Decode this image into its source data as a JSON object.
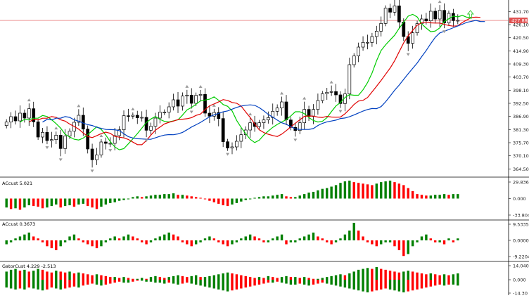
{
  "colors": {
    "background": "#ffffff",
    "bull_body": "#ffffff",
    "bear_body": "#000000",
    "candle_line": "#000000",
    "ma_fast": "#00cc00",
    "ma_mid": "#e00000",
    "ma_slow": "#0040c0",
    "price_line": "#e05050",
    "fractal": "#9a9a9a",
    "hist_up": "#008000",
    "hist_down": "#ff0000",
    "buy_arrow": "#33cc33"
  },
  "price_axis": {
    "ticks": [
      "431.70",
      "426.10",
      "420.50",
      "414.90",
      "409.30",
      "403.70",
      "398.10",
      "392.50",
      "386.90",
      "381.30",
      "375.70",
      "370.10",
      "364.50"
    ],
    "current_price": "427.88"
  },
  "panes": {
    "ac_1": {
      "label": "ACcust 5.021",
      "ticks": [
        "29.836",
        "0.000",
        "-33.804"
      ]
    },
    "ac_2": {
      "label": "ACcust 0.3673",
      "ticks": [
        "9.5335",
        "0.0000",
        "-9.2204"
      ]
    },
    "gator": {
      "label": "GatorCust 4.229 -2.513",
      "ticks": [
        "14.040",
        "0.000",
        "-14.30"
      ]
    }
  },
  "chart_data": {
    "type": "candlestick",
    "ylim": [
      361.0,
      436.0
    ],
    "close": [
      384.5,
      386.8,
      385.0,
      388.3,
      386.2,
      390.2,
      384.6,
      378.1,
      380.1,
      376.6,
      377.0,
      378.9,
      373.2,
      378.5,
      380.6,
      384.4,
      387.4,
      381.5,
      373.0,
      368.4,
      370.5,
      376.0,
      375.4,
      375.4,
      378.7,
      381.2,
      387.2,
      387.0,
      387.4,
      386.3,
      386.5,
      381.0,
      382.7,
      386.2,
      388.7,
      388.7,
      391.0,
      394.0,
      391.3,
      395.6,
      396.0,
      392.5,
      395.9,
      396.3,
      388.3,
      387.0,
      388.6,
      386.0,
      376.1,
      373.4,
      373.9,
      376.3,
      379.1,
      381.1,
      384.2,
      382.6,
      384.2,
      385.4,
      386.4,
      389.1,
      390.5,
      393.1,
      385.4,
      382.2,
      380.9,
      384.2,
      389.9,
      386.9,
      389.9,
      393.7,
      396.6,
      397.2,
      397.5,
      396.1,
      392.4,
      396.5,
      409.0,
      412.7,
      416.5,
      418.5,
      418.5,
      421.0,
      423.3,
      426.6,
      433.1,
      431.4,
      434.1,
      427.2,
      421.0,
      418.1,
      422.6,
      426.5,
      428.5,
      427.7,
      431.8,
      428.5,
      432.2,
      426.8,
      430.9,
      427.8,
      427.9
    ]
  },
  "indicators": {
    "ac_1": [
      -12,
      -14,
      -13,
      -15,
      -12,
      -9,
      -10,
      -11,
      -13,
      -12,
      -10,
      -8,
      -12,
      -10,
      -9,
      -11,
      -8,
      -7,
      -10,
      -12,
      -14,
      -11,
      -8,
      -6,
      -5,
      -3,
      -2,
      -1,
      2,
      3,
      2,
      3,
      4,
      5,
      5,
      6,
      6,
      7,
      5,
      5,
      4,
      3,
      2,
      1,
      -1,
      -3,
      -5,
      -7,
      -9,
      -10,
      -8,
      -6,
      -4,
      -2,
      -1,
      1,
      2,
      3,
      3,
      4,
      5,
      6,
      3,
      2,
      2,
      4,
      6,
      8,
      9,
      11,
      13,
      14,
      16,
      18,
      21,
      23,
      24,
      22,
      21,
      20,
      19,
      18,
      20,
      22,
      23,
      24,
      22,
      20,
      18,
      14,
      10,
      6,
      5,
      4,
      4,
      5,
      5,
      6,
      5,
      6,
      6
    ],
    "ac_2": [
      -2,
      -1,
      1,
      2,
      3,
      4,
      2,
      1,
      -1,
      -3,
      -4,
      -5,
      -3,
      -1,
      2,
      3,
      1,
      -1,
      -2,
      -3,
      -4,
      -3,
      -1,
      1,
      2,
      1,
      2,
      3,
      2,
      1,
      -1,
      -2,
      -1,
      1,
      2,
      3,
      4,
      3,
      2,
      -1,
      -2,
      -3,
      -2,
      -1,
      1,
      2,
      1,
      -1,
      -2,
      -3,
      -2,
      -1,
      1,
      2,
      3,
      2,
      1,
      -1,
      -1,
      1,
      2,
      3,
      -2,
      -1,
      -1,
      1,
      2,
      3,
      4,
      2,
      1,
      -1,
      -2,
      -1,
      1,
      3,
      5,
      9,
      5,
      2,
      -1,
      -2,
      -3,
      -2,
      -1,
      -1,
      -3,
      -5,
      -8,
      -7,
      -3,
      -1,
      2,
      3,
      1,
      -1,
      -1,
      -2,
      1,
      -1,
      1
    ],
    "gator": [
      9,
      11,
      12,
      10,
      11,
      9,
      10,
      12,
      11,
      9,
      8,
      10,
      9,
      8,
      9,
      7,
      8,
      7,
      6,
      5,
      6,
      5,
      4,
      3,
      3,
      2,
      3,
      2,
      1,
      1,
      2,
      1,
      3,
      4,
      3,
      2,
      3,
      4,
      5,
      4,
      3,
      4,
      5,
      3,
      3,
      4,
      5,
      6,
      7,
      8,
      7,
      6,
      5,
      4,
      3,
      2,
      3,
      2,
      4,
      3,
      2,
      3,
      4,
      3,
      3,
      2,
      3,
      2,
      1,
      1,
      2,
      3,
      4,
      5,
      6,
      5,
      7,
      9,
      11,
      12,
      13,
      12,
      14,
      12,
      11,
      10,
      9,
      8,
      9,
      10,
      9,
      8,
      7,
      6,
      7,
      6,
      5,
      6,
      5,
      6,
      7
    ],
    "gator_low": [
      -8,
      -9,
      -10,
      -9,
      -10,
      -8,
      -9,
      -10,
      -11,
      -10,
      -8,
      -9,
      -10,
      -9,
      -8,
      -7,
      -8,
      -6,
      -5,
      -4,
      -5,
      -6,
      -5,
      -4,
      -3,
      -2,
      -3,
      -3,
      -2,
      -1,
      -1,
      -2,
      -2,
      -3,
      -3,
      -4,
      -3,
      -4,
      -5,
      -4,
      -3,
      -4,
      -5,
      -6,
      -7,
      -8,
      -9,
      -10,
      -11,
      -12,
      -11,
      -10,
      -9,
      -8,
      -7,
      -6,
      -5,
      -4,
      -3,
      -3,
      -2,
      -3,
      -4,
      -5,
      -5,
      -4,
      -5,
      -6,
      -5,
      -4,
      -3,
      -4,
      -5,
      -6,
      -7,
      -8,
      -9,
      -10,
      -11,
      -12,
      -13,
      -12,
      -11,
      -10,
      -9,
      -10,
      -11,
      -12,
      -13,
      -12,
      -11,
      -10,
      -9,
      -8,
      -7,
      -6,
      -5,
      -6,
      -5,
      -5,
      -6
    ]
  }
}
